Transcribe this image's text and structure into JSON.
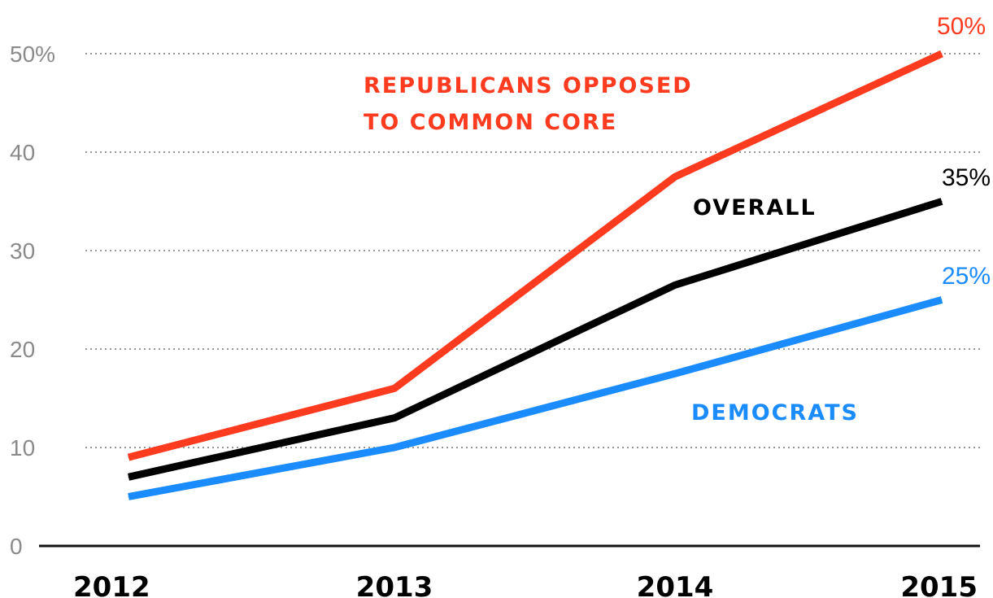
{
  "chart_data": {
    "type": "line",
    "title": "",
    "xlabel": "",
    "ylabel": "",
    "x": [
      "2012",
      "2013",
      "2014",
      "2015"
    ],
    "ylim": [
      0,
      50
    ],
    "y_ticks": [
      {
        "value": 0,
        "label": "0"
      },
      {
        "value": 10,
        "label": "10"
      },
      {
        "value": 20,
        "label": "20"
      },
      {
        "value": 30,
        "label": "30"
      },
      {
        "value": 40,
        "label": "40"
      },
      {
        "value": 50,
        "label": "50%"
      }
    ],
    "grid": true,
    "series": [
      {
        "key": "republicans",
        "name_lines": [
          "REPUBLICANS OPPOSED",
          "TO COMMON CORE"
        ],
        "color": "#ff3b1f",
        "values": [
          9,
          16,
          37.5,
          50
        ],
        "end_label": "50%"
      },
      {
        "key": "overall",
        "name_lines": [
          "OVERALL"
        ],
        "color": "#000000",
        "values": [
          7,
          13,
          26.5,
          35
        ],
        "end_label": "35%"
      },
      {
        "key": "democrats",
        "name_lines": [
          "DEMOCRATS"
        ],
        "color": "#1a8cff",
        "values": [
          5,
          10,
          17.5,
          25
        ],
        "end_label": "25%"
      }
    ]
  }
}
